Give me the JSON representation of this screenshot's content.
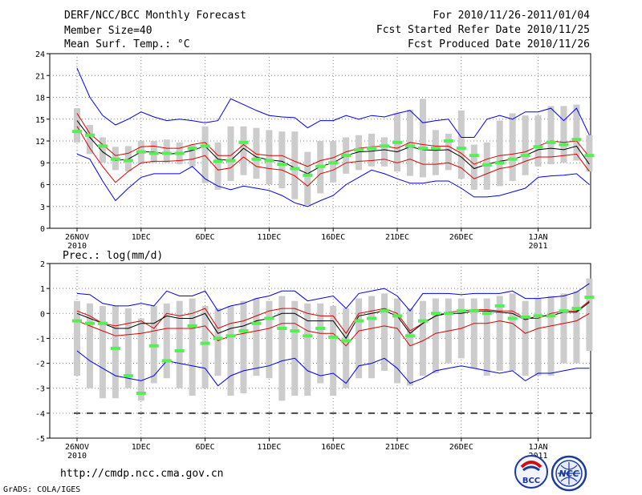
{
  "header": {
    "title": "DERF/NCC/BCC Monthly Forecast",
    "member_size": "Member Size=40",
    "temp_label": "Mean Surf. Temp.: °C",
    "forecast_period": "For 2010/11/26-2011/01/04",
    "start_date": "Fcst Started Refer Date 2010/11/25",
    "produced_date": "Fcst Produced Date 2010/11/26"
  },
  "footer": {
    "url": "http://cmdp.ncc.cma.gov.cn",
    "grads_credit": "GrADS: COLA/IGES",
    "logo_bcc_text": "BCC",
    "logo_ncc_text": "NCC"
  },
  "colors": {
    "max_line": "#0000ee",
    "pct_line": "#dd0000",
    "mean_line": "#000000",
    "box": "#cccccc",
    "obs": "#55ee55",
    "grid": "#888888"
  },
  "chart_data": [
    {
      "type": "line",
      "title": "Mean Surf. Temp.: °C",
      "xlabel": "",
      "ylabel": "",
      "ylim": [
        0,
        24
      ],
      "yticks": [
        0,
        3,
        6,
        9,
        12,
        15,
        18,
        21,
        24
      ],
      "x_tick_labels": [
        {
          "day": 0,
          "label": "26NOV",
          "sub": "2010"
        },
        {
          "day": 5,
          "label": "1DEC",
          "sub": ""
        },
        {
          "day": 10,
          "label": "6DEC",
          "sub": ""
        },
        {
          "day": 15,
          "label": "11DEC",
          "sub": ""
        },
        {
          "day": 20,
          "label": "16DEC",
          "sub": ""
        },
        {
          "day": 25,
          "label": "21DEC",
          "sub": ""
        },
        {
          "day": 30,
          "label": "26DEC",
          "sub": ""
        },
        {
          "day": 36,
          "label": "1JAN",
          "sub": "2011"
        }
      ],
      "series": [
        {
          "name": "max",
          "values": [
            22,
            18,
            15.5,
            14.2,
            15,
            16,
            15.3,
            14.8,
            15,
            14.8,
            14.5,
            14.8,
            17.8,
            17,
            16.2,
            15.5,
            15.3,
            15.2,
            13.8,
            14.8,
            14.8,
            15.5,
            15,
            15.5,
            15.3,
            15.8,
            16.2,
            14.5,
            14.8,
            15,
            12.5,
            12.5,
            15,
            15.5,
            15,
            16,
            16,
            16.5,
            14.8,
            16.5,
            12.8
          ]
        },
        {
          "name": "upper",
          "values": [
            15.8,
            13,
            11.5,
            10,
            10.3,
            11.2,
            11.3,
            11,
            11,
            11.5,
            11.8,
            10,
            10,
            11.5,
            10.2,
            10,
            10,
            9.2,
            8.5,
            9.3,
            9.7,
            10.5,
            11,
            11.2,
            11.3,
            11,
            11.8,
            11.5,
            11.3,
            11.3,
            10.3,
            8.8,
            9.5,
            10,
            10.2,
            10.5,
            11.3,
            12,
            11.8,
            12,
            9.8
          ]
        },
        {
          "name": "mean",
          "values": [
            14.8,
            12.5,
            10.5,
            9.3,
            9.5,
            10.5,
            10.5,
            10.2,
            10.3,
            10.7,
            11.3,
            9.5,
            9.3,
            11,
            9.8,
            9.4,
            9.2,
            8.3,
            7.5,
            8.5,
            9,
            10,
            10.5,
            10.6,
            10.8,
            10.5,
            11.2,
            10.8,
            10.7,
            10.8,
            9.8,
            8.2,
            8.8,
            9.2,
            9.5,
            10,
            10.8,
            11,
            10.8,
            11.3,
            8.8
          ]
        },
        {
          "name": "lower",
          "values": [
            14,
            11,
            8.5,
            6.3,
            7.8,
            9,
            9.2,
            9.2,
            9.3,
            9.5,
            10,
            8,
            8.3,
            9.8,
            8.5,
            8.2,
            8,
            7.2,
            5.8,
            7.5,
            8,
            9,
            9.2,
            9.3,
            9.5,
            9,
            9.5,
            8.8,
            8.8,
            9,
            8.3,
            6.8,
            7.5,
            8.2,
            8.5,
            9.2,
            9.8,
            9.8,
            10,
            10.2,
            7.8
          ]
        },
        {
          "name": "min",
          "values": [
            10.2,
            9.5,
            6.5,
            3.8,
            5.5,
            7,
            7.5,
            7.5,
            7.5,
            8.5,
            6.8,
            5.8,
            5.3,
            5.8,
            5.5,
            5.2,
            4.5,
            3.5,
            3,
            3.8,
            4.5,
            6,
            7,
            8,
            7.5,
            6.8,
            6.2,
            6.2,
            6.5,
            6.5,
            5.5,
            4.3,
            4.3,
            4.5,
            5,
            5.5,
            7,
            7.2,
            7.3,
            7.5,
            6
          ]
        },
        {
          "name": "obs",
          "values": [
            13.3,
            12.8,
            11.3,
            9.5,
            9.3,
            10.5,
            10.3,
            10.3,
            10.3,
            11,
            11.3,
            9.2,
            9.3,
            11.8,
            9.5,
            9.3,
            8.8,
            8.2,
            7.3,
            8.5,
            9,
            10,
            10.8,
            11,
            11.3,
            11.8,
            11.3,
            11,
            11,
            12,
            11,
            10,
            8.7,
            9,
            9.5,
            10,
            11.2,
            11.8,
            11.5,
            12.2,
            10
          ]
        },
        {
          "name": "box_high",
          "values": [
            16.5,
            14.2,
            12.5,
            11.2,
            11.3,
            12,
            12,
            12.2,
            11.8,
            11.5,
            14,
            11.8,
            14,
            14,
            13.8,
            13.5,
            13.3,
            13.3,
            10.5,
            12,
            12,
            12.5,
            12.8,
            13,
            12.5,
            15.8,
            16.3,
            17.8,
            13.5,
            13,
            16.2,
            11.5,
            11.8,
            14.8,
            15.8,
            15.5,
            15.5,
            16.8,
            16.8,
            17,
            12.8
          ]
        },
        {
          "name": "box_low",
          "values": [
            11.8,
            10.2,
            9,
            8,
            7.8,
            8.8,
            9,
            9,
            8.8,
            8.5,
            6.2,
            5.3,
            6.5,
            7.3,
            6.8,
            6,
            5.5,
            4,
            3.2,
            4.8,
            6.3,
            7.5,
            8,
            8.5,
            8.5,
            7.8,
            7.2,
            7,
            7.3,
            8,
            6.8,
            5.3,
            5.3,
            5.8,
            6.5,
            7.3,
            8.5,
            8.8,
            9,
            9.3,
            7.8
          ]
        }
      ]
    },
    {
      "type": "line",
      "title": "Prec.: log(mm/d)",
      "xlabel": "",
      "ylabel": "",
      "ylim": [
        -5,
        2
      ],
      "yticks": [
        -5,
        -4,
        -3,
        -2,
        -1,
        0,
        1,
        2
      ],
      "x_tick_labels": [
        {
          "day": 0,
          "label": "26NOV",
          "sub": "2010"
        },
        {
          "day": 5,
          "label": "1DEC",
          "sub": ""
        },
        {
          "day": 10,
          "label": "6DEC",
          "sub": ""
        },
        {
          "day": 15,
          "label": "11DEC",
          "sub": ""
        },
        {
          "day": 20,
          "label": "16DEC",
          "sub": ""
        },
        {
          "day": 25,
          "label": "21DEC",
          "sub": ""
        },
        {
          "day": 30,
          "label": "26DEC",
          "sub": ""
        },
        {
          "day": 36,
          "label": "1JAN",
          "sub": "2011"
        }
      ],
      "series": [
        {
          "name": "max",
          "values": [
            0.8,
            0.75,
            0.4,
            0.3,
            0.3,
            0.4,
            0.3,
            0.9,
            0.7,
            0.7,
            0.9,
            0.1,
            0.3,
            0.4,
            0.6,
            0.7,
            0.9,
            0.9,
            0.5,
            0.6,
            0.7,
            0.2,
            0.8,
            0.9,
            1,
            0.7,
            0.1,
            0.8,
            0.8,
            0.8,
            0.75,
            0.8,
            0.8,
            0.8,
            0.9,
            0.6,
            0.6,
            0.65,
            0.7,
            0.85,
            1.2
          ]
        },
        {
          "name": "upper",
          "values": [
            0.1,
            -0.1,
            -0.4,
            -0.5,
            -0.4,
            -0.3,
            -0.6,
            0,
            -0.1,
            0,
            0.2,
            -0.6,
            -0.4,
            -0.3,
            -0.1,
            0.1,
            0.2,
            0.2,
            0,
            -0.1,
            -0.1,
            -0.8,
            0,
            0.1,
            0.2,
            0,
            -0.7,
            -0.4,
            -0.1,
            0.05,
            0.1,
            0.15,
            0.15,
            0.1,
            0.1,
            -0.2,
            -0.2,
            0,
            0.1,
            0.1,
            0.5
          ]
        },
        {
          "name": "mean",
          "values": [
            0,
            -0.2,
            -0.4,
            -0.6,
            -0.6,
            -0.4,
            -0.4,
            -0.1,
            -0.2,
            -0.2,
            0,
            -0.8,
            -0.6,
            -0.5,
            -0.3,
            -0.2,
            0,
            0,
            -0.3,
            -0.3,
            -0.3,
            -1,
            -0.1,
            0,
            0.1,
            -0.1,
            -0.8,
            -0.4,
            -0.1,
            0,
            0,
            0.1,
            0.1,
            0.05,
            0,
            -0.25,
            -0.1,
            -0.1,
            0.05,
            0.05,
            0.45
          ]
        },
        {
          "name": "lower",
          "values": [
            -0.3,
            -0.5,
            -0.7,
            -0.9,
            -0.85,
            -0.8,
            -0.7,
            -0.6,
            -0.6,
            -0.6,
            -0.5,
            -1.1,
            -0.9,
            -0.8,
            -0.7,
            -0.6,
            -0.4,
            -0.4,
            -0.7,
            -0.8,
            -0.8,
            -1.3,
            -0.7,
            -0.6,
            -0.5,
            -0.6,
            -1.3,
            -1.1,
            -0.8,
            -0.7,
            -0.6,
            -0.4,
            -0.4,
            -0.3,
            -0.4,
            -0.8,
            -0.6,
            -0.5,
            -0.4,
            -0.3,
            0
          ]
        },
        {
          "name": "min",
          "values": [
            -1.5,
            -1.9,
            -2.2,
            -2.5,
            -2.6,
            -2.7,
            -2.5,
            -1.9,
            -2,
            -2.1,
            -2.2,
            -2.9,
            -2.5,
            -2.3,
            -2.2,
            -2.1,
            -1.9,
            -1.8,
            -2.3,
            -2.5,
            -2.4,
            -2.8,
            -2.1,
            -2,
            -1.8,
            -2.2,
            -2.8,
            -2.6,
            -2.3,
            -2.2,
            -2.1,
            -2.2,
            -2.3,
            -2.4,
            -2.3,
            -2.7,
            -2.4,
            -2.4,
            -2.3,
            -2.2,
            -2.2
          ]
        },
        {
          "name": "obs",
          "values": [
            -0.3,
            -0.4,
            -0.4,
            -1.4,
            -2.5,
            -3.2,
            -1.3,
            -1.9,
            -1.5,
            -0.5,
            -1.2,
            -1,
            -0.9,
            -0.7,
            -0.4,
            -0.2,
            -0.6,
            -0.7,
            -0.9,
            -0.6,
            -0.95,
            -1.1,
            -0.3,
            -0.2,
            0.1,
            -0.1,
            -0.9,
            -0.3,
            0,
            0,
            0.1,
            0.1,
            0,
            0.3,
            -0.2,
            -0.15,
            -0.1,
            -0.1,
            0.1,
            0.2,
            0.65
          ]
        },
        {
          "name": "box_high",
          "values": [
            0.5,
            0.4,
            0.3,
            0.3,
            0.2,
            -0.2,
            0.3,
            0.4,
            0.5,
            0.6,
            0.3,
            0.2,
            0.3,
            0.5,
            0.6,
            0.5,
            0.7,
            0.5,
            0.4,
            0.4,
            0.3,
            0.2,
            0.6,
            0.7,
            0.8,
            0.6,
            0.2,
            0.5,
            0.6,
            0.6,
            0.6,
            0.6,
            0.6,
            0.7,
            0.8,
            0.5,
            0.6,
            0.7,
            0.8,
            0.9,
            1.4
          ]
        },
        {
          "name": "box_low",
          "values": [
            -2.5,
            -3,
            -3.4,
            -3.4,
            -3,
            -3.5,
            -2.8,
            -2.6,
            -3,
            -3.3,
            -3,
            -2.5,
            -3.3,
            -3.2,
            -2.5,
            -2.6,
            -3.5,
            -3.3,
            -3.3,
            -2.8,
            -3.3,
            -3,
            -2.6,
            -2.6,
            -2.3,
            -2.8,
            -2.9,
            -2.5,
            -2.4,
            -2,
            -1.8,
            -2.2,
            -2.5,
            -2.3,
            -2.3,
            -2.5,
            -2.5,
            -2.5,
            -2,
            -2,
            -1.5
          ]
        }
      ]
    }
  ]
}
